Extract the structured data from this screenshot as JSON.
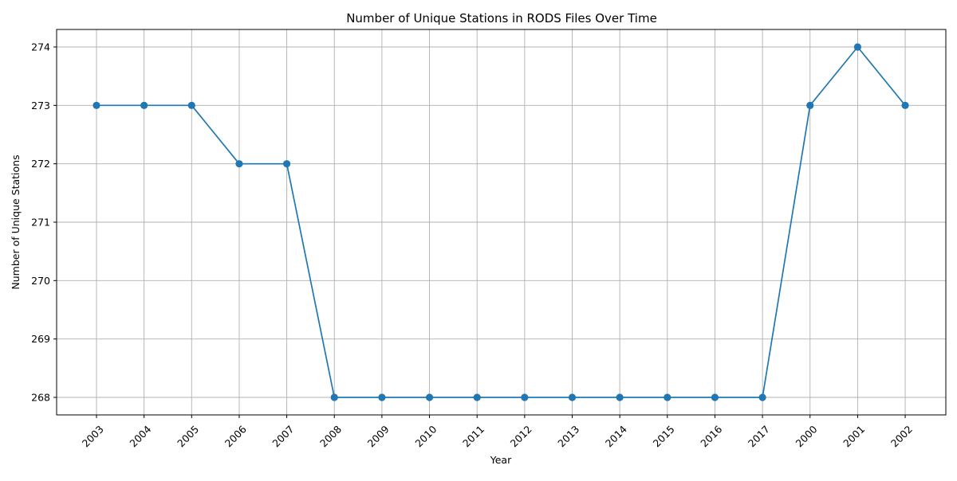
{
  "chart_data": {
    "type": "line",
    "title": "Number of Unique Stations in RODS Files Over Time",
    "xlabel": "Year",
    "ylabel": "Number of Unique Stations",
    "categories": [
      "2003",
      "2004",
      "2005",
      "2006",
      "2007",
      "2008",
      "2009",
      "2010",
      "2011",
      "2012",
      "2013",
      "2014",
      "2015",
      "2016",
      "2017",
      "2000",
      "2001",
      "2002"
    ],
    "series": [
      {
        "values": [
          273,
          273,
          273,
          272,
          272,
          268,
          268,
          268,
          268,
          268,
          268,
          268,
          268,
          268,
          268,
          273,
          274,
          273
        ]
      }
    ],
    "ylim": [
      267.7,
      274.3
    ],
    "yticks": [
      268,
      269,
      270,
      271,
      272,
      273,
      274
    ],
    "grid": true,
    "x_tick_rotation": "45 degrees",
    "marker": "circle",
    "colors": {
      "line": "#1f77b4",
      "grid": "#b0b0b0",
      "axes": "#000000"
    }
  }
}
